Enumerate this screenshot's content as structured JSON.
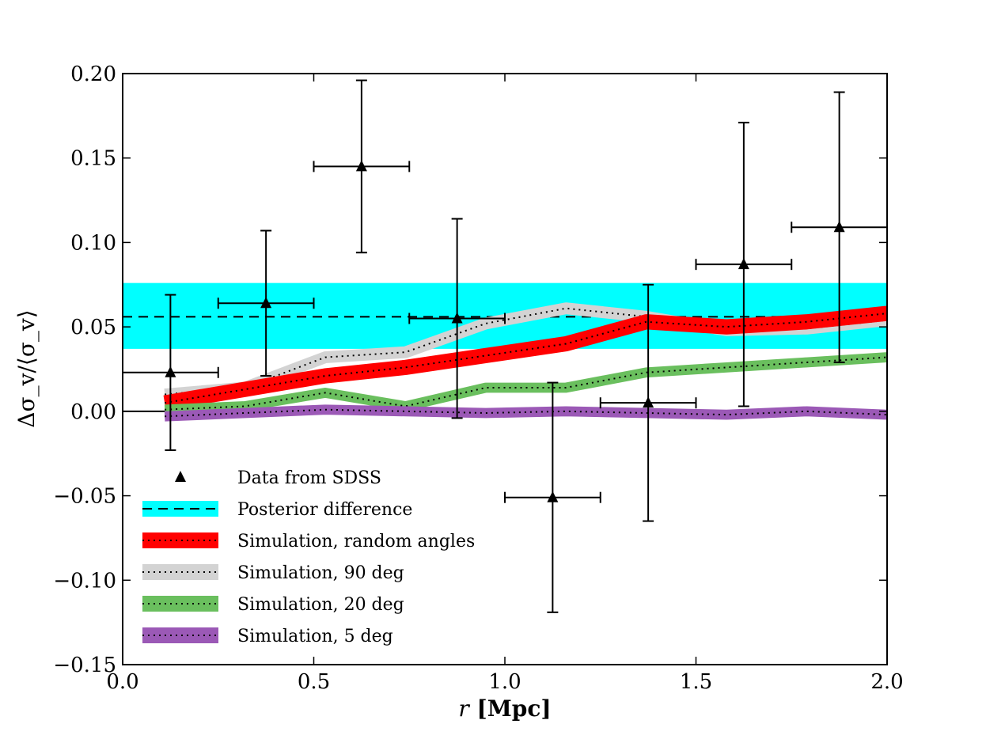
{
  "chart_data": {
    "type": "line",
    "title": "",
    "xlabel": "r [Mpc]",
    "ylabel": "Δσ_v/⟨σ_v⟩",
    "xlim": [
      0.0,
      2.0
    ],
    "ylim": [
      -0.15,
      0.2
    ],
    "xticks": [
      0.0,
      0.5,
      1.0,
      1.5,
      2.0
    ],
    "xtick_labels": [
      "0.0",
      "0.5",
      "1.0",
      "1.5",
      "2.0"
    ],
    "yticks": [
      -0.15,
      -0.1,
      -0.05,
      0.0,
      0.05,
      0.1,
      0.15,
      0.2
    ],
    "ytick_labels": [
      "−0.15",
      "−0.10",
      "−0.05",
      "0.00",
      "0.05",
      "0.10",
      "0.15",
      "0.20"
    ],
    "grid": false,
    "legend_position": "lower-left",
    "zero_line": 0.0,
    "posterior_difference": {
      "name": "Posterior difference",
      "mean": 0.056,
      "band": [
        0.037,
        0.076
      ],
      "band_color": "#00ffff",
      "line_color": "#000000"
    },
    "data_points": {
      "name": "Data from SDSS",
      "color": "#000000",
      "x": [
        0.125,
        0.375,
        0.625,
        0.875,
        1.125,
        1.375,
        1.625,
        1.875
      ],
      "y": [
        0.023,
        0.064,
        0.145,
        0.055,
        -0.051,
        0.005,
        0.087,
        0.109
      ],
      "xerr": [
        0.125,
        0.125,
        0.125,
        0.125,
        0.125,
        0.125,
        0.125,
        0.125
      ],
      "yerr": [
        0.046,
        0.043,
        0.051,
        0.059,
        0.068,
        0.07,
        0.084,
        0.08
      ]
    },
    "series": [
      {
        "name": "Simulation, 90 deg",
        "color": "#d3d3d3",
        "x": [
          0.11,
          0.32,
          0.53,
          0.74,
          0.95,
          1.16,
          1.37,
          1.58,
          1.79,
          2.0
        ],
        "y": [
          0.01,
          0.014,
          0.032,
          0.035,
          0.052,
          0.061,
          0.056,
          0.048,
          0.049,
          0.054
        ],
        "half_width": 0.0035
      },
      {
        "name": "Simulation, random angles",
        "color": "#ff0000",
        "x": [
          0.11,
          0.32,
          0.53,
          0.74,
          0.95,
          1.16,
          1.37,
          1.58,
          1.79,
          2.0
        ],
        "y": [
          0.005,
          0.013,
          0.021,
          0.026,
          0.033,
          0.04,
          0.053,
          0.05,
          0.053,
          0.058
        ],
        "half_width": 0.0045
      },
      {
        "name": "Simulation, 20 deg",
        "color": "#6abf5e",
        "x": [
          0.11,
          0.32,
          0.53,
          0.74,
          0.95,
          1.16,
          1.37,
          1.58,
          1.79,
          2.0
        ],
        "y": [
          0.001,
          0.003,
          0.011,
          0.003,
          0.014,
          0.014,
          0.023,
          0.026,
          0.029,
          0.032
        ],
        "half_width": 0.003
      },
      {
        "name": "Simulation, 5 deg",
        "color": "#9b59b6",
        "x": [
          0.11,
          0.32,
          0.53,
          0.74,
          0.95,
          1.16,
          1.37,
          1.58,
          1.79,
          2.0
        ],
        "y": [
          -0.003,
          -0.001,
          0.001,
          0.0,
          -0.001,
          0.0,
          -0.001,
          -0.002,
          0.0,
          -0.002
        ],
        "half_width": 0.003
      }
    ],
    "legend": [
      {
        "label": "Data from SDSS",
        "kind": "marker",
        "color": "#000000"
      },
      {
        "label": "Posterior difference",
        "kind": "band-dashed",
        "color": "#00ffff"
      },
      {
        "label": "Simulation, random angles",
        "kind": "band-dotted",
        "color": "#ff0000"
      },
      {
        "label": "Simulation, 90 deg",
        "kind": "band-dotted",
        "color": "#d3d3d3"
      },
      {
        "label": "Simulation, 20 deg",
        "kind": "band-dotted",
        "color": "#6abf5e"
      },
      {
        "label": "Simulation, 5 deg",
        "kind": "band-dotted",
        "color": "#9b59b6"
      }
    ]
  }
}
